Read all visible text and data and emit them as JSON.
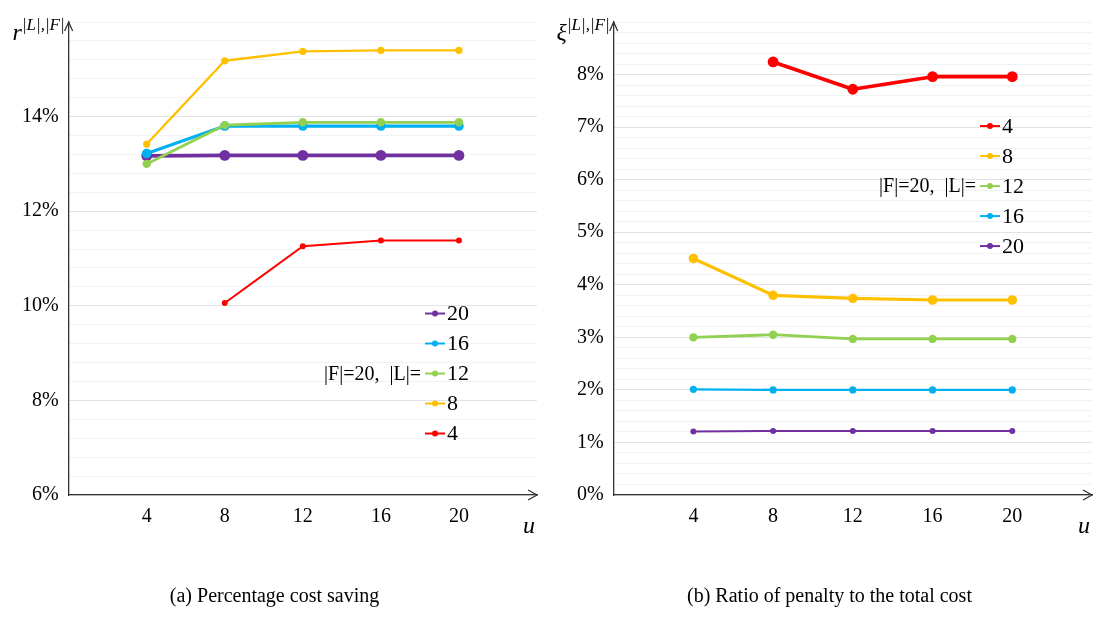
{
  "chart_data": [
    {
      "type": "line",
      "title": "(a) Percentage cost saving",
      "xlabel": "u",
      "ylabel": "r$^{|L|,|F|}$",
      "legend_title": "|F|=20,  |L|=",
      "x": [
        4,
        8,
        12,
        16,
        20
      ],
      "xlim": [
        0,
        24
      ],
      "xticks": [
        4,
        8,
        12,
        16,
        20
      ],
      "ylim": [
        6,
        16
      ],
      "yticks": [
        {
          "value": 6,
          "label": "6%"
        },
        {
          "value": 6.4,
          "label": null
        },
        {
          "value": 6.8,
          "label": null
        },
        {
          "value": 7.2,
          "label": null
        },
        {
          "value": 7.6,
          "label": null
        },
        {
          "value": 8,
          "label": "8%"
        },
        {
          "value": 8.4,
          "label": null
        },
        {
          "value": 8.8,
          "label": null
        },
        {
          "value": 9.2,
          "label": null
        },
        {
          "value": 9.6,
          "label": null
        },
        {
          "value": 10,
          "label": "10%"
        },
        {
          "value": 10.4,
          "label": null
        },
        {
          "value": 10.8,
          "label": null
        },
        {
          "value": 11.2,
          "label": null
        },
        {
          "value": 11.6,
          "label": null
        },
        {
          "value": 12,
          "label": "12%"
        },
        {
          "value": 12.4,
          "label": null
        },
        {
          "value": 12.8,
          "label": null
        },
        {
          "value": 13.2,
          "label": null
        },
        {
          "value": 13.6,
          "label": null
        },
        {
          "value": 14,
          "label": "14%"
        },
        {
          "value": 14.4,
          "label": null
        },
        {
          "value": 14.8,
          "label": null
        },
        {
          "value": 15.2,
          "label": null
        },
        {
          "value": 15.6,
          "label": null
        },
        {
          "value": 16,
          "label": null
        }
      ],
      "grid": "y",
      "legend": "bottom right",
      "marker": "circle",
      "line_style": "solid",
      "series": [
        {
          "name": "20",
          "color": "#7030a0",
          "values": [
            13.17,
            13.18,
            13.18,
            13.18,
            13.18
          ]
        },
        {
          "name": "16",
          "color": "#00b0f0",
          "values": [
            13.22,
            13.8,
            13.8,
            13.8,
            13.8
          ]
        },
        {
          "name": "12",
          "color": "#92d050",
          "values": [
            13.0,
            13.82,
            13.88,
            13.88,
            13.88
          ]
        },
        {
          "name": "8",
          "color": "#ffc000",
          "values": [
            13.42,
            15.18,
            15.38,
            15.4,
            15.4
          ]
        },
        {
          "name": "4",
          "color": "#ff0000",
          "values": [
            null,
            10.06,
            11.26,
            11.38,
            11.38
          ]
        }
      ]
    },
    {
      "type": "line",
      "title": "(b) Ratio of penalty to the total cost",
      "xlabel": "u",
      "ylabel": "ξ$^{|L|,|F|}$",
      "legend_title": "|F|=20,  |L|=",
      "x": [
        4,
        8,
        12,
        16,
        20
      ],
      "xlim": [
        0,
        24
      ],
      "xticks": [
        4,
        8,
        12,
        16,
        20
      ],
      "ylim": [
        0,
        9
      ],
      "yticks": [
        {
          "value": 0,
          "label": "0%"
        },
        {
          "value": 0.2,
          "label": null
        },
        {
          "value": 0.4,
          "label": null
        },
        {
          "value": 0.6,
          "label": null
        },
        {
          "value": 0.8,
          "label": null
        },
        {
          "value": 1,
          "label": "1%"
        },
        {
          "value": 1.2,
          "label": null
        },
        {
          "value": 1.4,
          "label": null
        },
        {
          "value": 1.6,
          "label": null
        },
        {
          "value": 1.8,
          "label": null
        },
        {
          "value": 2,
          "label": "2%"
        },
        {
          "value": 2.2,
          "label": null
        },
        {
          "value": 2.4,
          "label": null
        },
        {
          "value": 2.6,
          "label": null
        },
        {
          "value": 2.8,
          "label": null
        },
        {
          "value": 3,
          "label": "3%"
        },
        {
          "value": 3.2,
          "label": null
        },
        {
          "value": 3.4,
          "label": null
        },
        {
          "value": 3.6,
          "label": null
        },
        {
          "value": 3.8,
          "label": null
        },
        {
          "value": 4,
          "label": "4%"
        },
        {
          "value": 4.2,
          "label": null
        },
        {
          "value": 4.4,
          "label": null
        },
        {
          "value": 4.6,
          "label": null
        },
        {
          "value": 4.8,
          "label": null
        },
        {
          "value": 5,
          "label": "5%"
        },
        {
          "value": 5.2,
          "label": null
        },
        {
          "value": 5.4,
          "label": null
        },
        {
          "value": 5.6,
          "label": null
        },
        {
          "value": 5.8,
          "label": null
        },
        {
          "value": 6,
          "label": "6%"
        },
        {
          "value": 6.2,
          "label": null
        },
        {
          "value": 6.4,
          "label": null
        },
        {
          "value": 6.6,
          "label": null
        },
        {
          "value": 6.8,
          "label": null
        },
        {
          "value": 7,
          "label": "7%"
        },
        {
          "value": 7.2,
          "label": null
        },
        {
          "value": 7.4,
          "label": null
        },
        {
          "value": 7.6,
          "label": null
        },
        {
          "value": 7.8,
          "label": null
        },
        {
          "value": 8,
          "label": "8%"
        },
        {
          "value": 8.2,
          "label": null
        },
        {
          "value": 8.4,
          "label": null
        },
        {
          "value": 8.6,
          "label": null
        },
        {
          "value": 8.8,
          "label": null
        },
        {
          "value": 9,
          "label": null
        }
      ],
      "grid": "y",
      "legend": "top right",
      "marker": "circle",
      "line_style": "solid",
      "series": [
        {
          "name": "4",
          "color": "#ff0000",
          "values": [
            null,
            8.24,
            7.72,
            7.96,
            7.96
          ]
        },
        {
          "name": "8",
          "color": "#ffc000",
          "values": [
            4.5,
            3.8,
            3.74,
            3.71,
            3.71
          ]
        },
        {
          "name": "12",
          "color": "#92d050",
          "values": [
            3.0,
            3.05,
            2.97,
            2.97,
            2.97
          ]
        },
        {
          "name": "16",
          "color": "#00b0f0",
          "values": [
            2.01,
            2.0,
            2.0,
            2.0,
            2.0
          ]
        },
        {
          "name": "20",
          "color": "#7030a0",
          "values": [
            1.21,
            1.22,
            1.22,
            1.22,
            1.22
          ]
        }
      ]
    }
  ]
}
